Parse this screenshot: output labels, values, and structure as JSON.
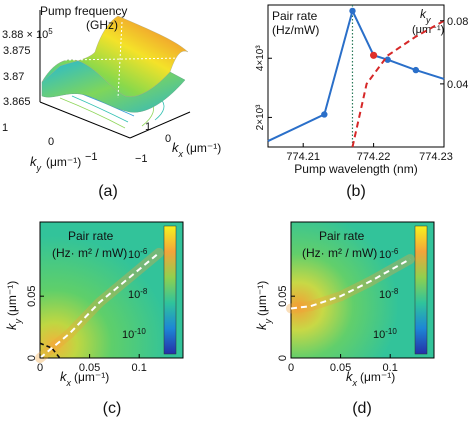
{
  "chart_data": [
    {
      "panel": "(a)",
      "type": "surface",
      "title_lines": [
        "Pump frequency",
        "(GHz)"
      ],
      "z_multiplier": "× 10^5",
      "z_ticks": [
        "3.875",
        "3.87",
        "3.865"
      ],
      "z_range": [
        3.865,
        3.88
      ],
      "ky_label": "k_y",
      "ky_unit": "(μm⁻¹)",
      "ky_ticks": [
        "1",
        "0",
        "−1"
      ],
      "ky_range": [
        -1,
        1
      ],
      "kx_label": "k_x",
      "kx_unit": "(μm⁻¹)",
      "kx_ticks": [
        "1",
        "0",
        "−1"
      ],
      "kx_range": [
        -1,
        1
      ]
    },
    {
      "panel": "(b)",
      "type": "line",
      "ylabel_lines": [
        "Pair rate",
        "(Hz/mW)"
      ],
      "y2label": "k_y",
      "y2unit": "(μm⁻¹)",
      "xlabel": "Pump wavelength (nm)",
      "x_ticks": [
        "774.21",
        "774.22",
        "774.23"
      ],
      "xlim": [
        774.205,
        774.23
      ],
      "y_ticks": [
        "2×10³",
        "4×10³"
      ],
      "ylim": [
        1000,
        5800
      ],
      "y2_ticks": [
        "0.04",
        "0.08"
      ],
      "y2lim": [
        0,
        0.09
      ],
      "vline_x": 774.217,
      "series": [
        {
          "color": "#2a6fc9",
          "x": [
            774.205,
            774.213,
            774.217,
            774.22,
            774.222,
            774.226,
            774.23
          ],
          "y": [
            1200,
            2100,
            5600,
            4100,
            3950,
            3600,
            3300
          ]
        },
        {
          "color": "#d62828",
          "x": [
            774.217,
            774.219,
            774.222,
            774.226,
            774.23
          ],
          "y": [
            0.0,
            0.04,
            0.058,
            0.07,
            0.08
          ]
        }
      ],
      "highlight_point": {
        "x": 774.22,
        "y": 4100,
        "color": "#e0302a"
      }
    },
    {
      "panel": "(c)",
      "type": "heatmap",
      "title_lines": [
        "Pair rate",
        "(Hz· m² / mW)"
      ],
      "xlabel": "k_x",
      "xunit": "(μm⁻¹)",
      "ylabel": "k_y",
      "yunit": "(μm⁻¹)",
      "x_ticks": [
        "0",
        "0.05",
        "0.1"
      ],
      "xlim": [
        0,
        0.125
      ],
      "y_ticks": [
        "0",
        "0.05"
      ],
      "ylim": [
        0,
        0.11
      ],
      "colorbar_ticks": [
        "10⁻⁶",
        "10⁻⁸",
        "10⁻¹⁰"
      ],
      "curve_white": {
        "x": [
          0,
          0.03,
          0.06,
          0.09,
          0.12
        ],
        "y": [
          0.0,
          0.02,
          0.045,
          0.065,
          0.085
        ]
      },
      "curve_black": {
        "x": [
          0.0,
          0.012,
          0.02
        ],
        "y": [
          0.012,
          0.008,
          0.0
        ]
      }
    },
    {
      "panel": "(d)",
      "type": "heatmap",
      "title_lines": [
        "Pair rate",
        "(Hz· m² / mW)"
      ],
      "xlabel": "k_x",
      "xunit": "(μm⁻¹)",
      "ylabel": "k_y",
      "yunit": "(μm⁻¹)",
      "x_ticks": [
        "0",
        "0.05",
        "0.1"
      ],
      "xlim": [
        0,
        0.125
      ],
      "y_ticks": [
        "0",
        "0.05"
      ],
      "ylim": [
        0,
        0.11
      ],
      "colorbar_ticks": [
        "10⁻⁶",
        "10⁻⁸",
        "10⁻¹⁰"
      ],
      "curve_white": {
        "x": [
          0,
          0.02,
          0.05,
          0.08,
          0.12
        ],
        "y": [
          0.04,
          0.042,
          0.05,
          0.062,
          0.08
        ]
      }
    }
  ]
}
